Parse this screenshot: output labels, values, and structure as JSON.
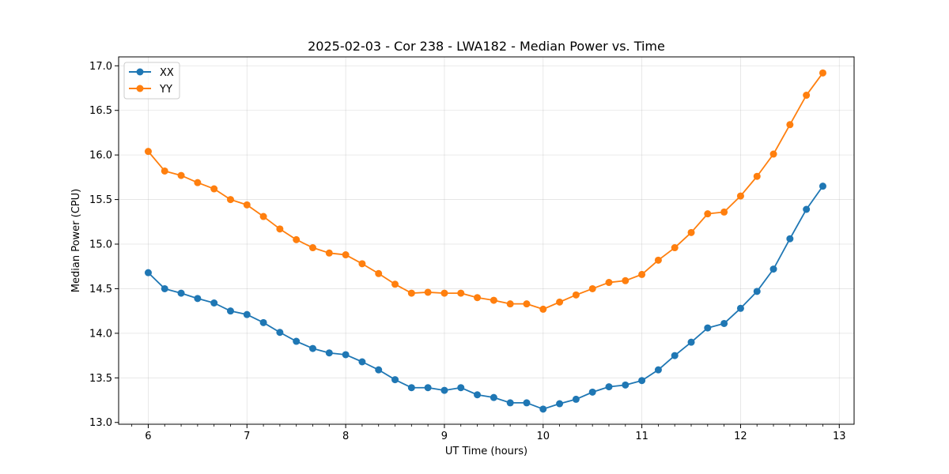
{
  "chart_data": {
    "type": "line",
    "title": "2025-02-03 - Cor 238 - LWA182 - Median Power vs. Time",
    "xlabel": "UT Time (hours)",
    "ylabel": "Median Power (CPU)",
    "xlim": [
      5.7,
      13.15
    ],
    "ylim": [
      12.98,
      17.1
    ],
    "xticks": [
      6,
      7,
      8,
      9,
      10,
      11,
      12,
      13
    ],
    "xtick_labels": [
      "6",
      "7",
      "8",
      "9",
      "10",
      "11",
      "12",
      "13"
    ],
    "xticks_minor_step": 0.16666,
    "yticks": [
      13.0,
      13.5,
      14.0,
      14.5,
      15.0,
      15.5,
      16.0,
      16.5,
      17.0
    ],
    "ytick_labels": [
      "13.0",
      "13.5",
      "14.0",
      "14.5",
      "15.0",
      "15.5",
      "16.0",
      "16.5",
      "17.0"
    ],
    "grid": true,
    "legend_position": "top-left",
    "x": [
      6.0,
      6.1667,
      6.3333,
      6.5,
      6.6667,
      6.8333,
      7.0,
      7.1667,
      7.3333,
      7.5,
      7.6667,
      7.8333,
      8.0,
      8.1667,
      8.3333,
      8.5,
      8.6667,
      8.8333,
      9.0,
      9.1667,
      9.3333,
      9.5,
      9.6667,
      9.8333,
      10.0,
      10.1667,
      10.3333,
      10.5,
      10.6667,
      10.8333,
      11.0,
      11.1667,
      11.3333,
      11.5,
      11.6667,
      11.8333,
      12.0,
      12.1667,
      12.3333,
      12.5,
      12.6667,
      12.8333
    ],
    "series": [
      {
        "name": "XX",
        "color": "#1f77b4",
        "values": [
          14.68,
          14.5,
          14.45,
          14.39,
          14.34,
          14.25,
          14.21,
          14.12,
          14.01,
          13.91,
          13.83,
          13.78,
          13.76,
          13.68,
          13.59,
          13.48,
          13.39,
          13.39,
          13.36,
          13.39,
          13.31,
          13.28,
          13.22,
          13.22,
          13.15,
          13.21,
          13.26,
          13.34,
          13.4,
          13.42,
          13.47,
          13.59,
          13.75,
          13.9,
          14.06,
          14.11,
          14.28,
          14.47,
          14.72,
          15.06,
          15.39,
          15.65
        ]
      },
      {
        "name": "YY",
        "color": "#ff7f0e",
        "values": [
          16.04,
          15.82,
          15.77,
          15.69,
          15.62,
          15.5,
          15.44,
          15.31,
          15.17,
          15.05,
          14.96,
          14.9,
          14.88,
          14.78,
          14.67,
          14.55,
          14.45,
          14.46,
          14.45,
          14.45,
          14.4,
          14.37,
          14.33,
          14.33,
          14.27,
          14.35,
          14.43,
          14.5,
          14.57,
          14.59,
          14.66,
          14.82,
          14.96,
          15.13,
          15.34,
          15.36,
          15.54,
          15.76,
          16.01,
          16.34,
          16.67,
          16.92
        ]
      }
    ]
  }
}
